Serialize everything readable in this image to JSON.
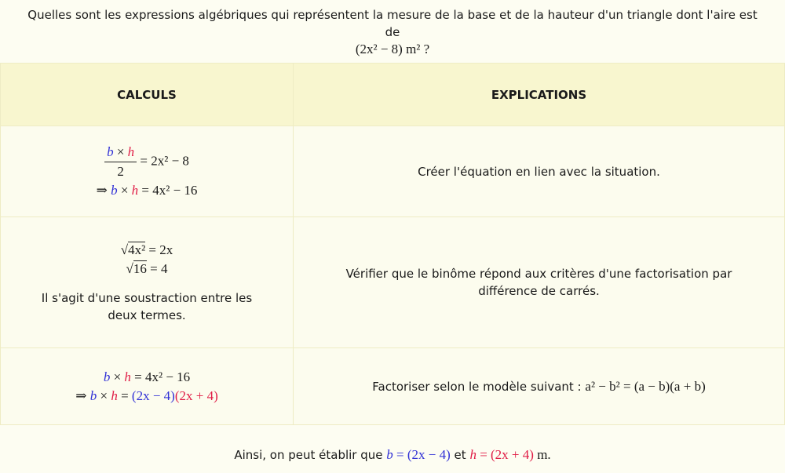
{
  "question": {
    "text": "Quelles sont les expressions algébriques qui représentent la mesure de la base et de la hauteur d'un triangle dont l'aire est de",
    "math": "(2x² − 8) m² ?"
  },
  "table": {
    "headers": [
      "CALCULS",
      "EXPLICATIONS"
    ],
    "rows": [
      {
        "calc": {
          "b": "b",
          "times": " × ",
          "h": "h",
          "den": "2",
          "rhs1": " = 2x² − 8",
          "arrow": "⇒ ",
          "rhs2": " = 4x² − 16"
        },
        "explication": "Créer l'équation en lien avec la situation."
      },
      {
        "calc": {
          "rad1": "4x²",
          "eq1": " = 2x",
          "rad2": "16",
          "eq2": " = 4",
          "text": "Il s'agit d'une soustraction entre les deux termes."
        },
        "explication": "Vérifier que le binôme répond aux critères d'une factorisation par différence de carrés."
      },
      {
        "calc": {
          "line1": " = 4x² − 16",
          "arrow": "⇒ ",
          "eq": " = ",
          "f1": "(2x − 4)",
          "f2": "(2x + 4)"
        },
        "explication": "Factoriser selon le modèle suivant :",
        "formula": "a² − b² = (a − b)(a + b)"
      }
    ]
  },
  "conclusion": {
    "text": "Ainsi, on peut établir que",
    "b": "b",
    "beq": " = (2x − 4)",
    "et": " et ",
    "h": "h",
    "heq": " = (2x + 4)",
    "unit": " m."
  },
  "colors": {
    "base": "#3232d6",
    "height": "#e01c46",
    "header_bg": "#f8f6cf"
  }
}
